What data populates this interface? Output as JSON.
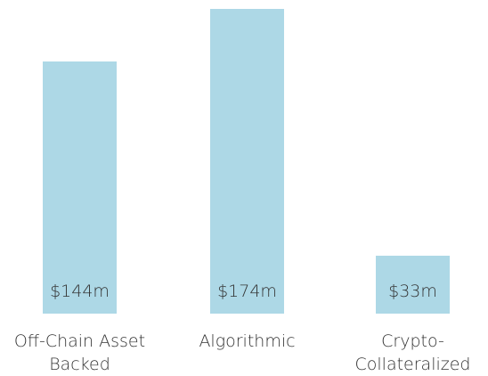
{
  "chart_data": {
    "type": "bar",
    "categories": [
      "Off-Chain Asset Backed",
      "Algorithmic",
      "Crypto-Collateralized"
    ],
    "values": [
      144,
      174,
      33
    ],
    "value_labels": [
      "$144m",
      "$174m",
      "$33m"
    ],
    "color": "#add8e6"
  }
}
